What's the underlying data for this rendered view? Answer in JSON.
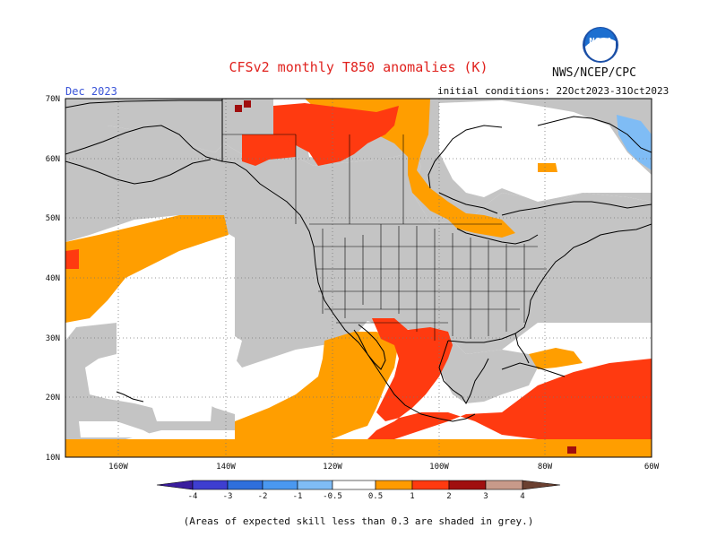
{
  "header": {
    "title": "CFSv2 monthly T850 anomalies (K)",
    "org": "NWS/NCEP/CPC",
    "period": "Dec 2023",
    "initial_conditions": "initial conditions: 22Oct2023-31Oct2023"
  },
  "logo": {
    "text": "NOAA"
  },
  "axes": {
    "lat_labels": [
      "70N",
      "60N",
      "50N",
      "40N",
      "30N",
      "20N",
      "10N"
    ],
    "lon_labels": [
      "160W",
      "140W",
      "120W",
      "100W",
      "80W",
      "60W"
    ]
  },
  "legend": {
    "labels": [
      "-4",
      "-3",
      "-2",
      "-1",
      "-0.5",
      "0.5",
      "1",
      "2",
      "3",
      "4"
    ],
    "colors": [
      "#3a1d9e",
      "#3e3ed0",
      "#2f6fdc",
      "#4a98f0",
      "#7fbcf5",
      "#ffffff",
      "#ff9b00",
      "#ff3a10",
      "#a00f0f",
      "#c89a8a",
      "#6b4030"
    ]
  },
  "map": {
    "colors": {
      "grey": "#c4c4c4",
      "orange": "#ff9e00",
      "red": "#ff3a10",
      "darkred": "#a00e0e",
      "lightblue": "#7fbcf5",
      "ocean_white": "#ffffff"
    }
  },
  "footnote": "(Areas of expected skill less than 0.3 are shaded in grey.)"
}
